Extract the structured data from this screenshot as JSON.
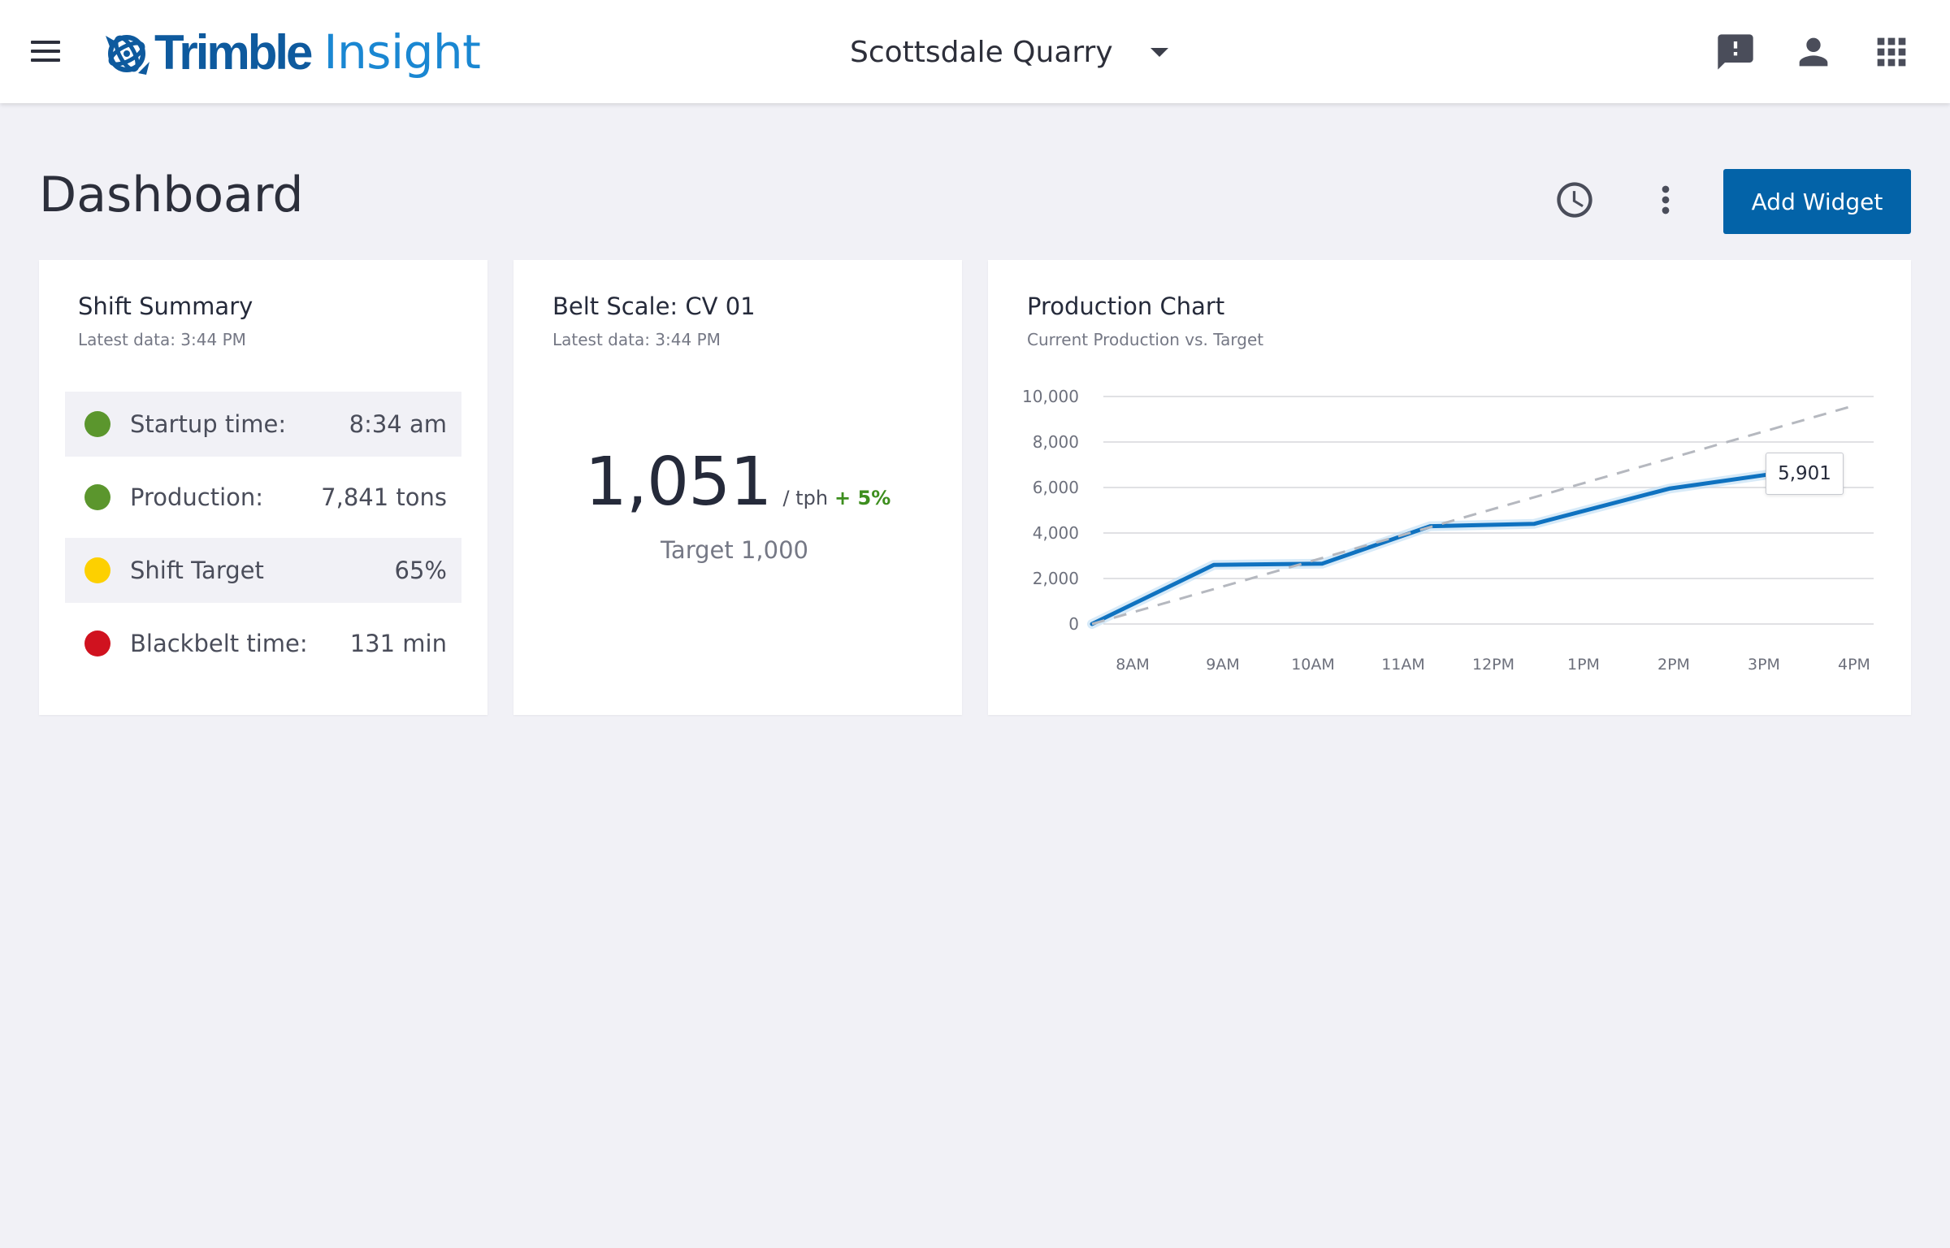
{
  "topbar": {
    "brand": "Trimble",
    "product": "Insight",
    "site": "Scottsdale Quarry"
  },
  "page": {
    "title": "Dashboard",
    "add_widget_label": "Add Widget"
  },
  "shift_summary": {
    "title": "Shift Summary",
    "subtitle": "Latest data: 3:44 PM",
    "rows": [
      {
        "label": "Startup time:",
        "value": "8:34 am",
        "status_color": "#5b962d"
      },
      {
        "label": "Production:",
        "value": "7,841 tons",
        "status_color": "#5b962d"
      },
      {
        "label": "Shift Target",
        "value": "65%",
        "status_color": "#fdd000"
      },
      {
        "label": "Blackbelt time:",
        "value": "131 min",
        "status_color": "#d0121f"
      }
    ]
  },
  "belt_scale": {
    "title": "Belt Scale: CV 01",
    "subtitle": "Latest data: 3:44 PM",
    "value": "1,051",
    "unit": "/ tph",
    "delta": "+ 5%",
    "target": "Target 1,000"
  },
  "production_chart": {
    "title": "Production Chart",
    "subtitle": "Current Production vs. Target",
    "tooltip": "5,901"
  },
  "chart_data": {
    "type": "line",
    "title": "Production Chart",
    "subtitle": "Current Production vs. Target",
    "xlabel": "",
    "ylabel": "",
    "x_ticks": [
      "8AM",
      "9AM",
      "10AM",
      "11AM",
      "12PM",
      "1PM",
      "2PM",
      "3PM",
      "4PM"
    ],
    "y_ticks": [
      "0",
      "2,000",
      "4,000",
      "6,000",
      "8,000",
      "10,000"
    ],
    "ylim": [
      0,
      10000
    ],
    "grid": true,
    "series": [
      {
        "style": "solid",
        "color": "#0f72c0",
        "points": [
          [
            7.55,
            0
          ],
          [
            8.9,
            2600
          ],
          [
            10.1,
            2650
          ],
          [
            11.3,
            4300
          ],
          [
            12.45,
            4400
          ],
          [
            13.95,
            5950
          ],
          [
            15.1,
            6600
          ]
        ]
      },
      {
        "style": "dashed",
        "color": "#b5b8bf",
        "points": [
          [
            7.55,
            0
          ],
          [
            16.0,
            9600
          ]
        ]
      }
    ],
    "annotation": {
      "text": "5,901"
    }
  },
  "colors": {
    "accent": "#0363a8",
    "brand_blue": "#0e5a9e",
    "insight_blue": "#1a87d2",
    "background": "#f1f1f6"
  },
  "icons": {
    "menu": "menu-icon",
    "feedback": "feedback-icon",
    "user": "user-icon",
    "apps": "apps-grid-icon",
    "history": "clock-icon",
    "more": "more-vert-icon"
  }
}
